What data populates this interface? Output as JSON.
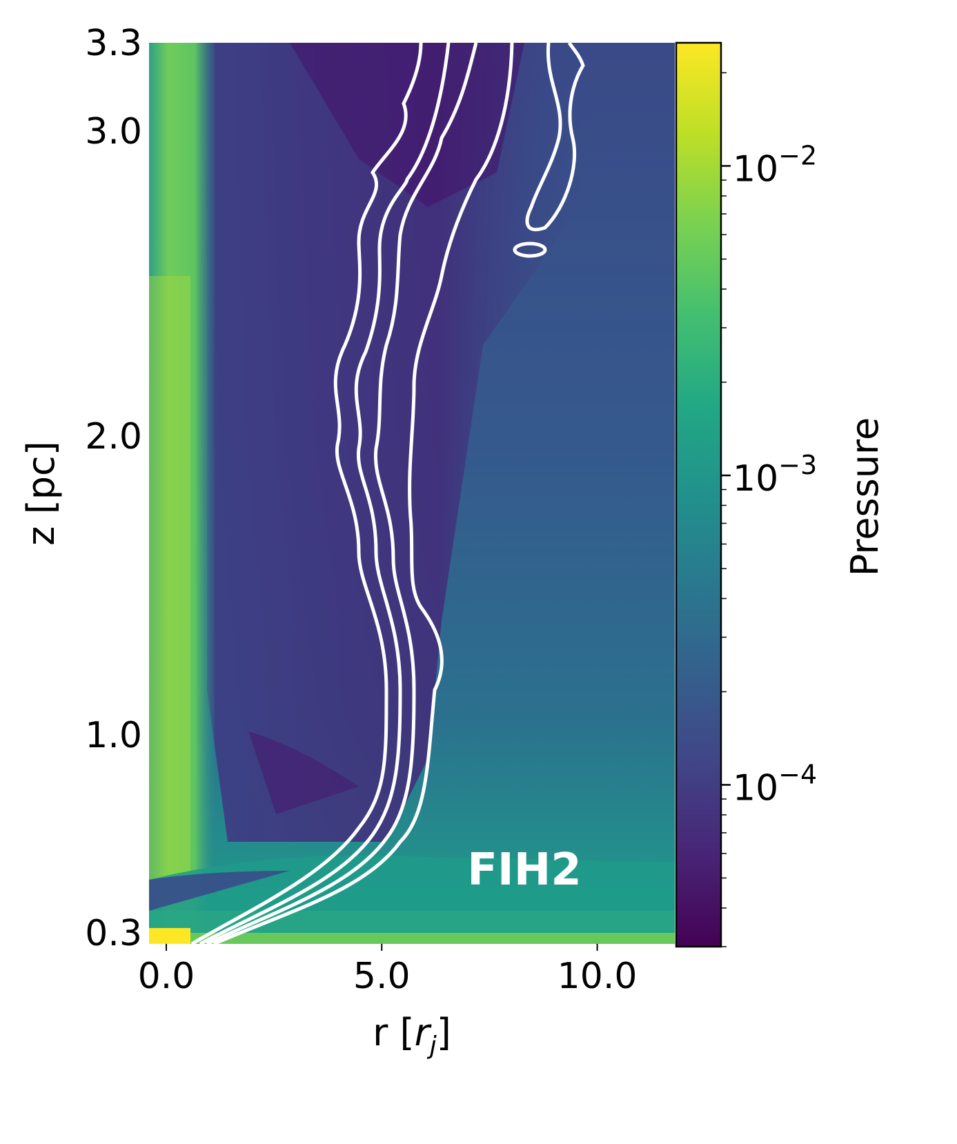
{
  "chart_data": {
    "type": "heatmap",
    "xlabel_main": "r [",
    "xlabel_sym": "r",
    "xlabel_sub": "j",
    "xlabel_end": "]",
    "ylabel": "z [pc]",
    "colorbar_label": "Pressure",
    "annotation": "FIH2",
    "xlim": [
      -0.4,
      11.8
    ],
    "x_ticks": [
      {
        "value": 0.0,
        "label": "0.0"
      },
      {
        "value": 5.0,
        "label": "5.0"
      },
      {
        "value": 10.0,
        "label": "10.0"
      }
    ],
    "y_ticks": [
      {
        "value": 0.3,
        "label": "0.3"
      },
      {
        "value": 1.0,
        "label": "1.0"
      },
      {
        "value": 2.0,
        "label": "2.0"
      },
      {
        "value": 3.0,
        "label": "3.0"
      },
      {
        "value": 3.3,
        "label": "3.3"
      }
    ],
    "colorbar_scale": "log",
    "colorbar_range": [
      3e-05,
      0.025
    ],
    "colorbar_ticks": [
      {
        "value": 0.0001,
        "base": "10",
        "exp": "−4"
      },
      {
        "value": 0.001,
        "base": "10",
        "exp": "−3"
      },
      {
        "value": 0.01,
        "base": "10",
        "exp": "−2"
      }
    ],
    "colormap": "viridis",
    "contour_color": "#ffffff"
  }
}
